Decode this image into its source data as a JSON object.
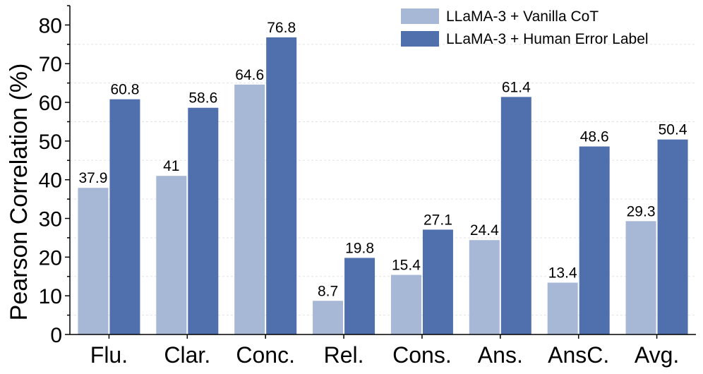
{
  "chart_data": {
    "type": "bar",
    "ylabel": "Pearson Correlation (%)",
    "xlabel": "",
    "ylim": [
      0,
      85
    ],
    "yticks": [
      0,
      10,
      20,
      30,
      40,
      50,
      60,
      70,
      80
    ],
    "grid": true,
    "legend_position": "top-right",
    "categories": [
      "Flu.",
      "Clar.",
      "Conc.",
      "Rel.",
      "Cons.",
      "Ans.",
      "AnsC.",
      "Avg."
    ],
    "series": [
      {
        "name": "LLaMA-3 + Vanilla CoT",
        "color": "#a7b7d6",
        "values": [
          37.9,
          41,
          64.6,
          8.7,
          15.4,
          24.4,
          13.4,
          29.3
        ],
        "labels": [
          "37.9",
          "41",
          "64.6",
          "8.7",
          "15.4",
          "24.4",
          "13.4",
          "29.3"
        ]
      },
      {
        "name": "LLaMA-3 + Human Error Label",
        "color": "#4f6fad",
        "values": [
          60.8,
          58.6,
          76.8,
          19.8,
          27.1,
          61.4,
          48.6,
          50.4
        ],
        "labels": [
          "60.8",
          "58.6",
          "76.8",
          "19.8",
          "27.1",
          "61.4",
          "48.6",
          "50.4"
        ]
      }
    ]
  }
}
